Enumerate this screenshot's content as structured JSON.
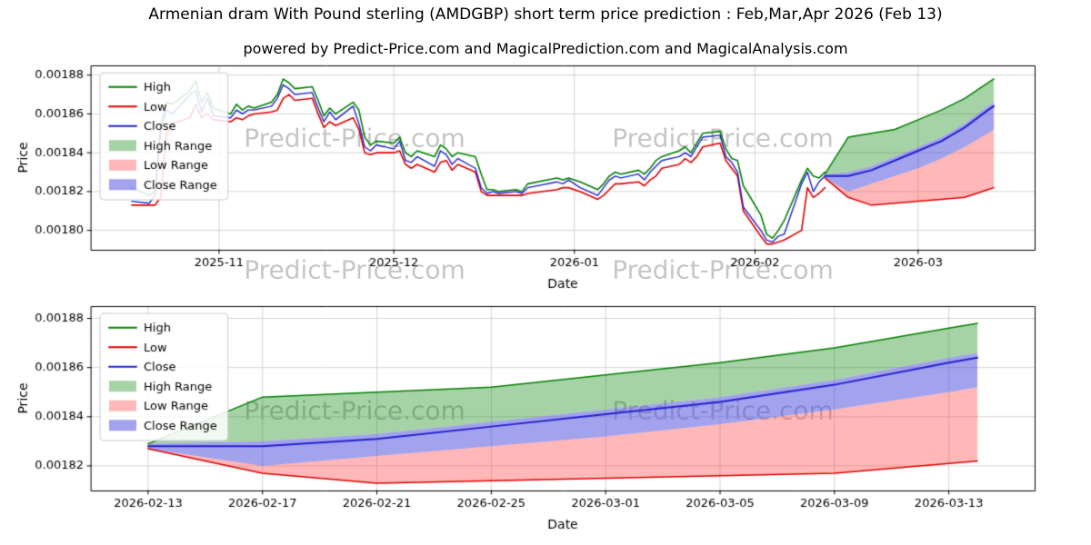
{
  "page": {
    "title": "Armenian dram With Pound sterling (AMDGBP) short term price prediction : Feb,Mar,Apr 2026 (Feb 13)",
    "subtitle": "powered by Predict-Price.com and MagicalPrediction.com and MagicalAnalysis.com",
    "watermark": "Predict-Price.com"
  },
  "colors": {
    "high": "#008000",
    "low": "#dd0000",
    "close": "#2222cc",
    "high_range": "rgba(0,128,0,0.35)",
    "low_range": "rgba(255,50,50,0.35)",
    "close_range": "rgba(70,70,220,0.5)",
    "grid": "#d4d4d4",
    "axis": "#000000",
    "watermark": "rgba(128,128,128,0.45)"
  },
  "legend": [
    {
      "label": "High",
      "swatch": "line",
      "color": "#008000"
    },
    {
      "label": "Low",
      "swatch": "line",
      "color": "#dd0000"
    },
    {
      "label": "Close",
      "swatch": "line",
      "color": "#2222cc"
    },
    {
      "label": "High Range",
      "swatch": "patch",
      "color": "rgba(0,128,0,0.35)"
    },
    {
      "label": "Low Range",
      "swatch": "patch",
      "color": "rgba(255,50,50,0.35)"
    },
    {
      "label": "Close Range",
      "swatch": "patch",
      "color": "rgba(70,70,220,0.5)"
    }
  ],
  "chart_data": [
    {
      "id": "history-with-forecast",
      "type": "line",
      "title": "",
      "xlabel": "Date",
      "ylabel": "Price",
      "ylim": [
        0.00179,
        0.001885
      ],
      "xlim": [
        "2025-10-10",
        "2026-03-21"
      ],
      "yticks": [
        {
          "v": 0.0018,
          "label": "0.00180"
        },
        {
          "v": 0.00182,
          "label": "0.00182"
        },
        {
          "v": 0.00184,
          "label": "0.00184"
        },
        {
          "v": 0.00186,
          "label": "0.00186"
        },
        {
          "v": 0.00188,
          "label": "0.00188"
        }
      ],
      "xticks": [
        {
          "v": "2025-11-01",
          "label": "2025-11"
        },
        {
          "v": "2025-12-01",
          "label": "2025-12"
        },
        {
          "v": "2026-01-01",
          "label": "2026-01"
        },
        {
          "v": "2026-02-01",
          "label": "2026-02"
        },
        {
          "v": "2026-03-01",
          "label": "2026-03"
        }
      ],
      "history": {
        "dates": [
          "2025-10-17",
          "2025-10-20",
          "2025-10-21",
          "2025-10-22",
          "2025-10-23",
          "2025-10-24",
          "2025-10-27",
          "2025-10-28",
          "2025-10-29",
          "2025-10-30",
          "2025-10-31",
          "2025-11-03",
          "2025-11-04",
          "2025-11-05",
          "2025-11-06",
          "2025-11-07",
          "2025-11-10",
          "2025-11-11",
          "2025-11-12",
          "2025-11-13",
          "2025-11-14",
          "2025-11-17",
          "2025-11-18",
          "2025-11-19",
          "2025-11-20",
          "2025-11-21",
          "2025-11-24",
          "2025-11-25",
          "2025-11-26",
          "2025-11-27",
          "2025-11-28",
          "2025-12-01",
          "2025-12-02",
          "2025-12-03",
          "2025-12-04",
          "2025-12-05",
          "2025-12-08",
          "2025-12-09",
          "2025-12-10",
          "2025-12-11",
          "2025-12-12",
          "2025-12-15",
          "2025-12-16",
          "2025-12-17",
          "2025-12-18",
          "2025-12-19",
          "2025-12-22",
          "2025-12-23",
          "2025-12-24",
          "2025-12-29",
          "2025-12-30",
          "2025-12-31",
          "2026-01-02",
          "2026-01-05",
          "2026-01-06",
          "2026-01-07",
          "2026-01-08",
          "2026-01-09",
          "2026-01-12",
          "2026-01-13",
          "2026-01-14",
          "2026-01-15",
          "2026-01-16",
          "2026-01-19",
          "2026-01-20",
          "2026-01-21",
          "2026-01-22",
          "2026-01-23",
          "2026-01-26",
          "2026-01-27",
          "2026-01-28",
          "2026-01-29",
          "2026-01-30",
          "2026-02-02",
          "2026-02-03",
          "2026-02-04",
          "2026-02-05",
          "2026-02-06",
          "2026-02-09",
          "2026-02-10",
          "2026-02-11",
          "2026-02-12",
          "2026-02-13"
        ],
        "high": [
          0.001822,
          0.001818,
          0.00182,
          0.001855,
          0.001866,
          0.001865,
          0.001872,
          0.001877,
          0.001866,
          0.001871,
          0.001863,
          0.00186,
          0.001865,
          0.001862,
          0.001864,
          0.001863,
          0.001866,
          0.00187,
          0.001878,
          0.001876,
          0.001873,
          0.001874,
          0.001867,
          0.001859,
          0.001863,
          0.00186,
          0.001866,
          0.001862,
          0.001848,
          0.001844,
          0.001846,
          0.001845,
          0.001848,
          0.00184,
          0.001838,
          0.001841,
          0.001838,
          0.001844,
          0.001842,
          0.001838,
          0.00184,
          0.001838,
          0.001829,
          0.001821,
          0.001821,
          0.00182,
          0.001821,
          0.00182,
          0.001824,
          0.001827,
          0.001826,
          0.001827,
          0.001825,
          0.001821,
          0.001824,
          0.001828,
          0.00183,
          0.001829,
          0.001831,
          0.001829,
          0.001832,
          0.001836,
          0.001838,
          0.001841,
          0.001843,
          0.00184,
          0.001845,
          0.00185,
          0.001851,
          0.001842,
          0.001837,
          0.001836,
          0.001823,
          0.001808,
          0.001798,
          0.001796,
          0.0018,
          0.001805,
          0.001826,
          0.001832,
          0.001828,
          0.001827,
          0.00183
        ],
        "low": [
          0.001813,
          0.001813,
          0.001813,
          0.001817,
          0.00185,
          0.001855,
          0.001858,
          0.001865,
          0.001858,
          0.00186,
          0.001857,
          0.001856,
          0.001858,
          0.001857,
          0.001859,
          0.00186,
          0.001861,
          0.001862,
          0.001868,
          0.00187,
          0.001867,
          0.001868,
          0.00186,
          0.001853,
          0.001856,
          0.001854,
          0.001858,
          0.001852,
          0.00184,
          0.001839,
          0.00184,
          0.00184,
          0.001841,
          0.001834,
          0.001832,
          0.001834,
          0.00183,
          0.001835,
          0.001836,
          0.001831,
          0.001834,
          0.00183,
          0.00182,
          0.001818,
          0.001818,
          0.001818,
          0.001818,
          0.001818,
          0.001819,
          0.001821,
          0.001822,
          0.001822,
          0.00182,
          0.001816,
          0.001818,
          0.001821,
          0.001824,
          0.001824,
          0.001825,
          0.001823,
          0.001826,
          0.001828,
          0.001832,
          0.001834,
          0.001837,
          0.001835,
          0.001838,
          0.001843,
          0.001845,
          0.001836,
          0.001832,
          0.001828,
          0.00181,
          0.001797,
          0.001793,
          0.001793,
          0.001794,
          0.001795,
          0.0018,
          0.001822,
          0.001817,
          0.001819,
          0.001822
        ],
        "close": [
          0.001815,
          0.001814,
          0.001818,
          0.001852,
          0.001862,
          0.00186,
          0.00187,
          0.001872,
          0.001861,
          0.001868,
          0.001859,
          0.001858,
          0.001862,
          0.00186,
          0.001862,
          0.001862,
          0.001864,
          0.001868,
          0.001875,
          0.001873,
          0.00187,
          0.001871,
          0.001863,
          0.001856,
          0.001861,
          0.001857,
          0.001864,
          0.001855,
          0.001843,
          0.001841,
          0.001844,
          0.001842,
          0.001846,
          0.001836,
          0.001835,
          0.001838,
          0.001833,
          0.001841,
          0.001839,
          0.001834,
          0.001837,
          0.001832,
          0.001822,
          0.001819,
          0.00182,
          0.001819,
          0.00182,
          0.001819,
          0.001822,
          0.001825,
          0.001824,
          0.001826,
          0.001822,
          0.001818,
          0.001822,
          0.001826,
          0.001828,
          0.001827,
          0.001829,
          0.001826,
          0.00183,
          0.001833,
          0.001836,
          0.001838,
          0.00184,
          0.001838,
          0.001843,
          0.001848,
          0.001849,
          0.001838,
          0.001835,
          0.00183,
          0.001812,
          0.0018,
          0.001795,
          0.001794,
          0.001797,
          0.001798,
          0.001824,
          0.00183,
          0.00182,
          0.001825,
          0.001828
        ]
      },
      "forecast": {
        "dates": [
          "2026-02-13",
          "2026-02-17",
          "2026-02-21",
          "2026-02-25",
          "2026-03-01",
          "2026-03-05",
          "2026-03-09",
          "2026-03-13",
          "2026-03-14"
        ],
        "high": [
          0.001829,
          0.001848,
          0.00185,
          0.001852,
          0.001857,
          0.001862,
          0.001868,
          0.001876,
          0.001878
        ],
        "low": [
          0.001827,
          0.001817,
          0.001813,
          0.001814,
          0.001815,
          0.001816,
          0.001817,
          0.001821,
          0.001822
        ],
        "close": [
          0.001828,
          0.001828,
          0.001831,
          0.001836,
          0.001841,
          0.001846,
          0.001853,
          0.001862,
          0.001864
        ],
        "close_low": [
          0.001827,
          0.00182,
          0.001824,
          0.001828,
          0.001832,
          0.001837,
          0.001843,
          0.00185,
          0.001852
        ],
        "close_high": [
          0.001829,
          0.00183,
          0.001833,
          0.001838,
          0.001843,
          0.001848,
          0.001855,
          0.001864,
          0.001866
        ]
      }
    },
    {
      "id": "forecast-detail",
      "type": "line",
      "title": "",
      "xlabel": "Date",
      "ylabel": "Price",
      "ylim": [
        0.00181,
        0.001885
      ],
      "xlim": [
        "2026-02-11",
        "2026-03-16"
      ],
      "yticks": [
        {
          "v": 0.00182,
          "label": "0.00182"
        },
        {
          "v": 0.00184,
          "label": "0.00184"
        },
        {
          "v": 0.00186,
          "label": "0.00186"
        },
        {
          "v": 0.00188,
          "label": "0.00188"
        }
      ],
      "xticks": [
        {
          "v": "2026-02-13",
          "label": "2026-02-13"
        },
        {
          "v": "2026-02-17",
          "label": "2026-02-17"
        },
        {
          "v": "2026-02-21",
          "label": "2026-02-21"
        },
        {
          "v": "2026-02-25",
          "label": "2026-02-25"
        },
        {
          "v": "2026-03-01",
          "label": "2026-03-01"
        },
        {
          "v": "2026-03-05",
          "label": "2026-03-05"
        },
        {
          "v": "2026-03-09",
          "label": "2026-03-09"
        },
        {
          "v": "2026-03-13",
          "label": "2026-03-13"
        }
      ],
      "forecast": {
        "dates": [
          "2026-02-13",
          "2026-02-17",
          "2026-02-21",
          "2026-02-25",
          "2026-03-01",
          "2026-03-05",
          "2026-03-09",
          "2026-03-13",
          "2026-03-14"
        ],
        "high": [
          0.001829,
          0.001848,
          0.00185,
          0.001852,
          0.001857,
          0.001862,
          0.001868,
          0.001876,
          0.001878
        ],
        "low": [
          0.001827,
          0.001817,
          0.001813,
          0.001814,
          0.001815,
          0.001816,
          0.001817,
          0.001821,
          0.001822
        ],
        "close": [
          0.001828,
          0.001828,
          0.001831,
          0.001836,
          0.001841,
          0.001846,
          0.001853,
          0.001862,
          0.001864
        ],
        "close_low": [
          0.001827,
          0.00182,
          0.001824,
          0.001828,
          0.001832,
          0.001837,
          0.001843,
          0.00185,
          0.001852
        ],
        "close_high": [
          0.001829,
          0.00183,
          0.001833,
          0.001838,
          0.001843,
          0.001848,
          0.001855,
          0.001864,
          0.001866
        ]
      }
    }
  ]
}
